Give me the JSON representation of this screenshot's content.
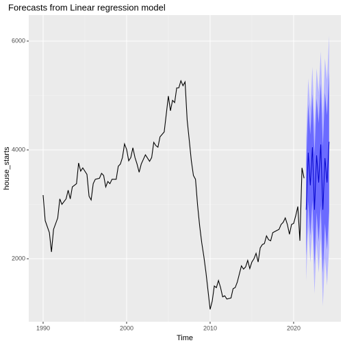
{
  "chart_data": {
    "type": "forecast",
    "title": "Forecasts from Linear regression model",
    "x_label": "Time",
    "y_label": "house_starts",
    "xlim": [
      1988.28,
      2025.66
    ],
    "ylim": [
      843,
      6478
    ],
    "xticks": [
      1990,
      2000,
      2010,
      2020
    ],
    "yticks": [
      2000,
      4000,
      6000
    ],
    "grid": true,
    "minor_grid": true,
    "x": [
      1990.0,
      1990.25,
      1990.75,
      1991.0,
      1991.25,
      1991.75,
      1992.0,
      1992.25,
      1992.75,
      1993.0,
      1993.25,
      1993.5,
      1994.0,
      1994.25,
      1994.5,
      1994.75,
      1995.25,
      1995.5,
      1995.75,
      1996.0,
      1996.25,
      1996.75,
      1997.0,
      1997.25,
      1997.5,
      1997.75,
      1998.0,
      1998.25,
      1998.75,
      1999.0,
      1999.25,
      1999.5,
      1999.75,
      2000.0,
      2000.25,
      2000.5,
      2000.75,
      2001.0,
      2001.25,
      2001.5,
      2001.75,
      2002.25,
      2002.75,
      2003.0,
      2003.25,
      2003.5,
      2003.75,
      2004.0,
      2004.5,
      2005.0,
      2005.25,
      2005.5,
      2005.75,
      2006.0,
      2006.25,
      2006.5,
      2006.75,
      2007.0,
      2007.25,
      2007.5,
      2007.75,
      2008.0,
      2008.25,
      2008.5,
      2008.75,
      2009.0,
      2009.25,
      2009.5,
      2009.75,
      2010.0,
      2010.25,
      2010.5,
      2010.75,
      2011.0,
      2011.25,
      2011.5,
      2011.75,
      2012.0,
      2012.5,
      2012.75,
      2013.0,
      2013.25,
      2013.5,
      2013.75,
      2014.0,
      2014.25,
      2014.5,
      2014.75,
      2015.0,
      2015.25,
      2015.5,
      2015.75,
      2016.0,
      2016.25,
      2016.5,
      2016.75,
      2017.0,
      2017.25,
      2017.5,
      2017.75,
      2018.0,
      2018.25,
      2018.5,
      2018.75,
      2019.0,
      2019.25,
      2019.5,
      2019.75,
      2020.0,
      2020.25,
      2020.5,
      2020.75,
      2021.0,
      2021.25
    ],
    "series": [
      {
        "color": "#000000",
        "values": [
          3170,
          2700,
          2480,
          2125,
          2540,
          2750,
          3100,
          3000,
          3100,
          3260,
          3100,
          3320,
          3380,
          3760,
          3610,
          3670,
          3550,
          3150,
          3080,
          3380,
          3460,
          3480,
          3570,
          3530,
          3320,
          3420,
          3380,
          3460,
          3460,
          3700,
          3740,
          3860,
          4110,
          4010,
          3800,
          3860,
          4040,
          3860,
          3740,
          3590,
          3740,
          3910,
          3790,
          3860,
          4140,
          4080,
          4050,
          4240,
          4330,
          4990,
          4720,
          4910,
          4870,
          5140,
          5140,
          5270,
          5180,
          5250,
          4550,
          4180,
          3800,
          3530,
          3460,
          2980,
          2600,
          2290,
          2040,
          1750,
          1410,
          1070,
          1220,
          1500,
          1470,
          1600,
          1470,
          1300,
          1320,
          1260,
          1280,
          1450,
          1470,
          1570,
          1720,
          1870,
          1810,
          1850,
          1970,
          1820,
          1940,
          2000,
          2100,
          1940,
          2200,
          2260,
          2280,
          2420,
          2350,
          2330,
          2480,
          2500,
          2520,
          2540,
          2630,
          2670,
          2750,
          2630,
          2450,
          2630,
          2650,
          2790,
          2960,
          2330,
          3670,
          3480
        ]
      }
    ],
    "forecast": {
      "x": [
        2021.5,
        2021.75,
        2022.0,
        2022.25,
        2022.5,
        2022.75,
        2023.0,
        2023.25,
        2023.5,
        2023.75,
        2024.0,
        2024.25
      ],
      "mean": [
        2900,
        3950,
        3350,
        4050,
        2900,
        3900,
        3400,
        4100,
        2900,
        3850,
        3400,
        4150
      ],
      "lo80": [
        2050,
        3060,
        2420,
        3080,
        1890,
        2850,
        2310,
        2980,
        1740,
        2650,
        2160,
        2870
      ],
      "hi80": [
        3750,
        4840,
        4280,
        5020,
        3910,
        4950,
        4490,
        5220,
        4060,
        5050,
        4640,
        5430
      ],
      "lo95": [
        1600,
        2590,
        1930,
        2570,
        1360,
        2300,
        1740,
        2390,
        1130,
        2020,
        1510,
        2200
      ],
      "hi95": [
        4200,
        5310,
        4770,
        5530,
        4440,
        5500,
        5060,
        5810,
        4670,
        5680,
        5290,
        6100
      ],
      "mean_color": "#0000cc",
      "band80_color": "#6b6bff",
      "band95_color": "#b8b8ff"
    }
  }
}
